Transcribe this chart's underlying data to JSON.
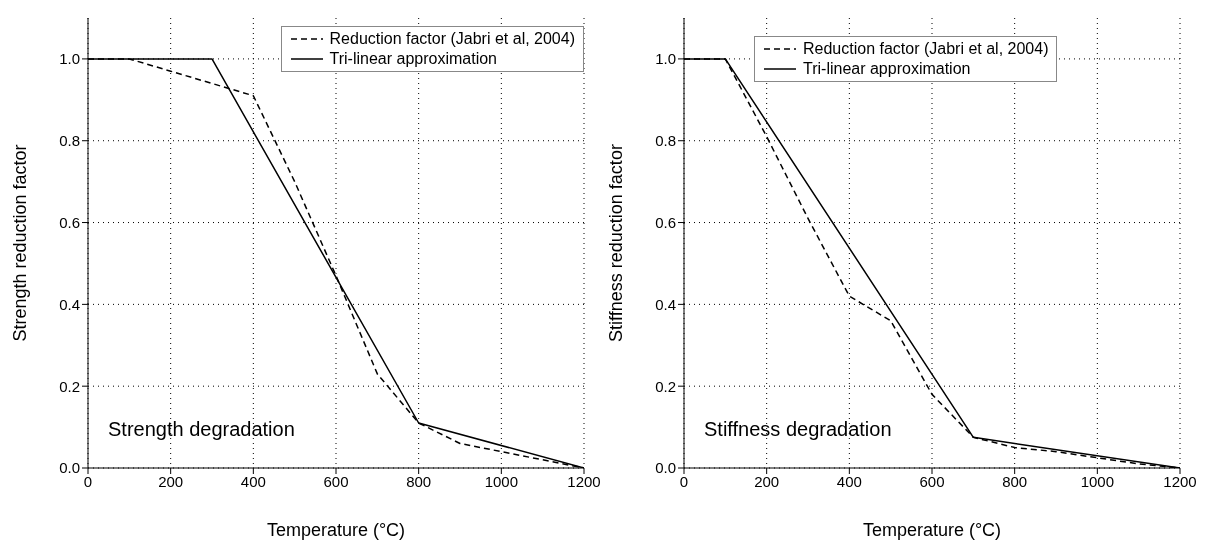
{
  "chart_data": [
    {
      "type": "line",
      "xlabel": "Temperature (°C)",
      "ylabel": "Strength reduction factor",
      "annotations": [
        "Strength degradation"
      ],
      "xlim": [
        0,
        1200
      ],
      "xticks": [
        0,
        200,
        400,
        600,
        800,
        1000,
        1200
      ],
      "ylim": [
        0,
        1.1
      ],
      "yticks": [
        {
          "value": 0,
          "label": "0.0"
        },
        {
          "value": 0.2,
          "label": "0.2"
        },
        {
          "value": 0.4,
          "label": "0.4"
        },
        {
          "value": 0.6,
          "label": "0.6"
        },
        {
          "value": 0.8,
          "label": "0.8"
        },
        {
          "value": 1,
          "label": "1.0"
        }
      ],
      "grid": true,
      "legend": "top right",
      "series": [
        {
          "name": "Reduction factor (Jabri et al, 2004)",
          "color": "#000000",
          "line_style": "dashed",
          "x": [
            0,
            100,
            200,
            300,
            400,
            500,
            600,
            700,
            800,
            900,
            1000,
            1100,
            1200
          ],
          "values": [
            1,
            1,
            0.97,
            0.94,
            0.91,
            0.7,
            0.47,
            0.23,
            0.11,
            0.06,
            0.04,
            0.02,
            0
          ]
        },
        {
          "name": "Tri-linear approximation",
          "color": "#000000",
          "line_style": "solid",
          "x": [
            0,
            300,
            800,
            1200
          ],
          "values": [
            1,
            1,
            0.11,
            0
          ]
        }
      ]
    },
    {
      "type": "line",
      "xlabel": "Temperature (°C)",
      "ylabel": "Stiffness reduction factor",
      "annotations": [
        "Stiffness degradation"
      ],
      "xlim": [
        0,
        1200
      ],
      "xticks": [
        0,
        200,
        400,
        600,
        800,
        1000,
        1200
      ],
      "ylim": [
        0,
        1.1
      ],
      "yticks": [
        {
          "value": 0,
          "label": "0.0"
        },
        {
          "value": 0.2,
          "label": "0.2"
        },
        {
          "value": 0.4,
          "label": "0.4"
        },
        {
          "value": 0.6,
          "label": "0.6"
        },
        {
          "value": 0.8,
          "label": "0.8"
        },
        {
          "value": 1,
          "label": "1.0"
        }
      ],
      "grid": true,
      "legend": "top",
      "series": [
        {
          "name": "Reduction factor (Jabri et al, 2004)",
          "color": "#000000",
          "line_style": "dashed",
          "x": [
            0,
            100,
            200,
            300,
            400,
            500,
            600,
            700,
            800,
            900,
            1000,
            1100,
            1200
          ],
          "values": [
            1,
            1,
            0.81,
            0.61,
            0.42,
            0.36,
            0.18,
            0.075,
            0.05,
            0.04,
            0.025,
            0.01,
            0
          ]
        },
        {
          "name": "Tri-linear approximation",
          "color": "#000000",
          "line_style": "solid",
          "x": [
            0,
            100,
            700,
            1200
          ],
          "values": [
            1,
            1,
            0.075,
            0
          ]
        }
      ]
    }
  ]
}
